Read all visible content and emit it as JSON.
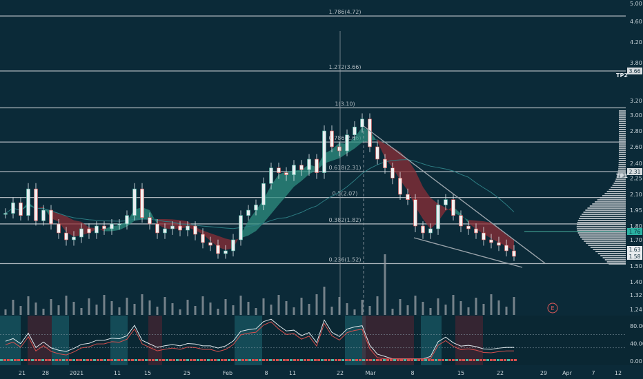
{
  "chart_data": {
    "type": "candlestick",
    "y_axis_labels": [
      "5.00",
      "4.60",
      "4.20",
      "3.80",
      "3.66",
      "3.20",
      "3.00",
      "2.80",
      "2.60",
      "2.40",
      "2.31",
      "2.25",
      "2.10",
      "1.95",
      "1.80",
      "1.76",
      "1.70",
      "1.63",
      "1.58",
      "1.50",
      "1.40",
      "1.32",
      "1.24",
      "80.00",
      "40.00",
      "0.00"
    ],
    "x_axis_labels": [
      "21",
      "28",
      "2021",
      "11",
      "15",
      "25",
      "Feb",
      "8",
      "11",
      "22",
      "Mar",
      "8",
      "15",
      "22",
      "29",
      "Apr",
      "7",
      "12"
    ],
    "fib_levels": [
      {
        "label": "1.786(4.72)",
        "value": 4.72
      },
      {
        "label": "1.272(3.66)",
        "value": 3.66
      },
      {
        "label": "1(3.10)",
        "value": 3.1
      },
      {
        "label": "0.786(2.66)",
        "value": 2.66
      },
      {
        "label": "0.618(2.31)",
        "value": 2.31
      },
      {
        "label": "0.5(2.07)",
        "value": 2.07
      },
      {
        "label": "0.382(1.82)",
        "value": 1.82
      },
      {
        "label": "0.236(1.52)",
        "value": 1.52
      }
    ],
    "targets": [
      {
        "label": "TP2",
        "value": 3.66
      },
      {
        "label": "TP1",
        "value": 2.31
      }
    ],
    "price_tags": [
      {
        "text": "3.66",
        "value": 3.66
      },
      {
        "text": "2.31",
        "value": 2.31
      },
      {
        "text": "1.76",
        "value": 1.76
      },
      {
        "text": "1.63",
        "value": 1.63
      },
      {
        "text": "1.58",
        "value": 1.58
      }
    ],
    "earnings_marker": "E",
    "close_series": [
      1.92,
      2.02,
      1.9,
      2.15,
      1.85,
      1.95,
      1.82,
      1.75,
      1.7,
      1.72,
      1.78,
      1.75,
      1.8,
      1.78,
      1.82,
      1.82,
      1.9,
      2.15,
      1.88,
      1.82,
      1.75,
      1.78,
      1.8,
      1.77,
      1.8,
      1.74,
      1.68,
      1.66,
      1.6,
      1.62,
      1.7,
      1.9,
      1.95,
      2.0,
      2.2,
      2.35,
      2.3,
      2.28,
      2.38,
      2.33,
      2.45,
      2.3,
      2.8,
      2.6,
      2.55,
      2.75,
      2.85,
      2.95,
      2.6,
      2.45,
      2.35,
      2.25,
      2.1,
      2.05,
      1.8,
      1.75,
      1.78,
      2.0,
      2.05,
      1.9,
      1.8,
      1.78,
      1.75,
      1.7,
      1.68,
      1.66,
      1.62,
      1.58
    ],
    "oscillator_range": [
      0,
      100
    ]
  },
  "colors": {
    "background": "#0b2a38",
    "bull": "#4ab3a0",
    "bear": "#d9504e",
    "ribbon_bull": "#2f8f80",
    "ribbon_bear": "#8c2e36",
    "volume": "#9aa0a6",
    "grid_line": "#c8cdd2",
    "trendline": "#9aa3aa",
    "osc_band": "#1d6a74"
  }
}
